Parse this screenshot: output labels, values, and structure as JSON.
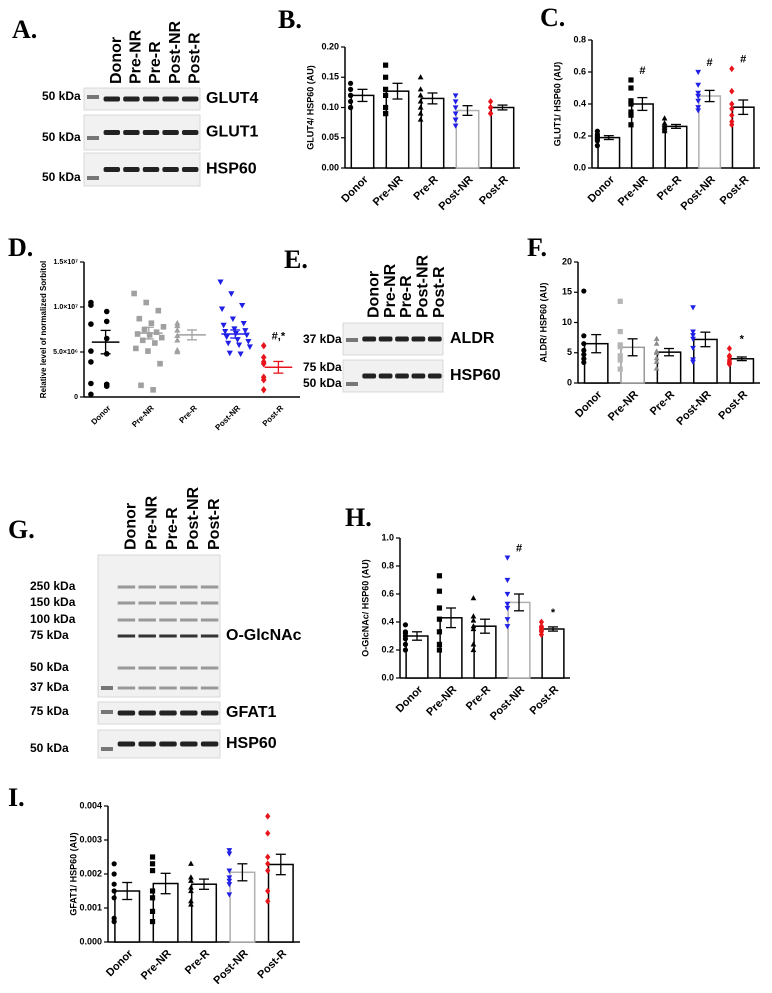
{
  "blots": [
    {
      "letter": "A.",
      "lanes": [
        "Donor",
        "Pre-NR",
        "Pre-R",
        "Post-NR",
        "Post-R"
      ],
      "rows": [
        {
          "label": "GLUT4",
          "markers": [
            "50 kDa"
          ]
        },
        {
          "label": "GLUT1",
          "markers": [
            "50 kDa"
          ]
        },
        {
          "label": "HSP60",
          "markers": [
            "50 kDa"
          ]
        }
      ]
    },
    {
      "letter": "E.",
      "lanes": [
        "Donor",
        "Pre-NR",
        "Pre-R",
        "Post-NR",
        "Post-R"
      ],
      "rows": [
        {
          "label": "ALDR",
          "markers": [
            "37 kDa"
          ]
        },
        {
          "label": "HSP60",
          "markers": [
            "75 kDa",
            "50 kDa"
          ]
        }
      ]
    },
    {
      "letter": "G.",
      "lanes": [
        "Donor",
        "Pre-NR",
        "Pre-R",
        "Post-NR",
        "Post-R"
      ],
      "rows": [
        {
          "label": "O-GlcNAc",
          "markers": [
            "250 kDa",
            "150 kDa",
            "100 kDa",
            "75 kDa",
            "50 kDa",
            "37 kDa"
          ]
        },
        {
          "label": "GFAT1",
          "markers": [
            "75 kDa"
          ]
        },
        {
          "label": "HSP60",
          "markers": [
            "50 kDa"
          ]
        }
      ]
    }
  ],
  "chart_data": [
    {
      "type": "bar",
      "letter": "B.",
      "ylabel": "GLUT4/ HSP60 (AU)",
      "categories": [
        "Donor",
        "Pre-NR",
        "Pre-R",
        "Post-NR",
        "Post-R"
      ],
      "values": [
        0.12,
        0.127,
        0.115,
        0.095,
        0.1
      ],
      "errors": [
        0.01,
        0.013,
        0.009,
        0.008,
        0.004
      ],
      "points": [
        [
          0.14,
          0.13,
          0.12,
          0.12,
          0.11,
          0.1,
          0.1
        ],
        [
          0.17,
          0.15,
          0.13,
          0.12,
          0.1,
          0.09,
          0.09
        ],
        [
          0.15,
          0.13,
          0.12,
          0.11,
          0.1,
          0.09,
          0.08
        ],
        [
          0.12,
          0.11,
          0.1,
          0.09,
          0.08,
          0.08,
          0.07
        ],
        [
          0.11,
          0.1,
          0.1,
          0.1,
          0.09,
          0.09,
          0.09
        ]
      ],
      "colors": [
        "#000000",
        "#000000",
        "#000000",
        "#1f1fe6",
        "#e8141b"
      ],
      "bar_edges": [
        "#000000",
        "#000000",
        "#000000",
        "#b0b0b0",
        "#000000"
      ],
      "markers": [
        "circle",
        "square",
        "triangle",
        "triangle-down",
        "diamond"
      ],
      "annotations": [
        null,
        null,
        null,
        null,
        null
      ],
      "ylim": [
        0,
        0.2
      ],
      "yticks": [
        {
          "value": 0,
          "label": "0.00"
        },
        {
          "value": 0.05,
          "label": "0.05"
        },
        {
          "value": 0.1,
          "label": "0.10"
        },
        {
          "value": 0.15,
          "label": "0.15"
        },
        {
          "value": 0.2,
          "label": "0.20"
        }
      ]
    },
    {
      "type": "bar",
      "letter": "C.",
      "ylabel": "GLUT1/ HSP60 (AU)",
      "categories": [
        "Donor",
        "Pre-NR",
        "Pre-R",
        "Post-NR",
        "Post-R"
      ],
      "values": [
        0.19,
        0.4,
        0.26,
        0.45,
        0.38
      ],
      "errors": [
        0.012,
        0.04,
        0.012,
        0.035,
        0.045
      ],
      "points": [
        [
          0.23,
          0.21,
          0.2,
          0.19,
          0.18,
          0.17,
          0.14
        ],
        [
          0.55,
          0.5,
          0.42,
          0.4,
          0.35,
          0.33,
          0.27
        ],
        [
          0.31,
          0.28,
          0.27,
          0.26,
          0.25,
          0.24,
          0.23
        ],
        [
          0.6,
          0.52,
          0.47,
          0.45,
          0.42,
          0.38,
          0.36
        ],
        [
          0.62,
          0.48,
          0.4,
          0.37,
          0.33,
          0.29,
          0.27
        ]
      ],
      "colors": [
        "#000000",
        "#000000",
        "#000000",
        "#1f1fe6",
        "#e8141b"
      ],
      "bar_edges": [
        "#000000",
        "#000000",
        "#000000",
        "#b0b0b0",
        "#000000"
      ],
      "markers": [
        "circle",
        "square",
        "triangle",
        "triangle-down",
        "diamond"
      ],
      "annotations": [
        null,
        "#",
        null,
        "#",
        "#"
      ],
      "ylim": [
        0,
        0.8
      ],
      "yticks": [
        {
          "value": 0,
          "label": "0.0"
        },
        {
          "value": 0.2,
          "label": "0.2"
        },
        {
          "value": 0.4,
          "label": "0.4"
        },
        {
          "value": 0.6,
          "label": "0.6"
        },
        {
          "value": 0.8,
          "label": "0.8"
        }
      ]
    },
    {
      "type": "dot",
      "letter": "D.",
      "ylabel": "Relative level of normalized Sorbitol",
      "categories": [
        "Donor",
        "Pre-NR",
        "Pre-R",
        "Post-NR",
        "Post-R"
      ],
      "values": [
        6100000,
        7100000,
        6900000,
        7000000,
        3300000
      ],
      "errors": [
        1300000,
        650000,
        550000,
        450000,
        650000
      ],
      "points": [
        [
          10200000,
          9500000,
          10500000,
          8400000,
          8100000,
          6500000,
          5100000,
          4800000,
          3900000,
          1200000,
          1500000,
          1400000,
          300000,
          1400000
        ],
        [
          11500000,
          10500000,
          9600000,
          8700000,
          8200000,
          7800000,
          7500000,
          7200000,
          7000000,
          6900000,
          6600000,
          6300000,
          6000000,
          5400000,
          5100000,
          3700000,
          1300000,
          800000
        ],
        [
          8200000,
          7900000,
          7400000,
          6800000,
          6300000,
          5200000,
          5000000
        ],
        [
          12800000,
          11500000,
          10200000,
          9800000,
          8700000,
          8200000,
          8000000,
          7600000,
          7400000,
          7300000,
          7100000,
          6900000,
          6700000,
          6400000,
          6200000,
          6000000,
          5800000,
          5600000,
          4900000,
          4800000
        ],
        [
          5700000,
          4400000,
          3900000,
          3700000,
          2200000,
          1900000,
          800000
        ]
      ],
      "colors": [
        "#000000",
        "#a0a0a0",
        "#a0a0a0",
        "#1f1fe6",
        "#e8141b"
      ],
      "markers": [
        "circle",
        "square",
        "triangle",
        "triangle-down",
        "diamond"
      ],
      "annotations": [
        null,
        null,
        null,
        null,
        "#,*"
      ],
      "ylim": [
        0,
        15000000
      ],
      "yticks": [
        0,
        {
          "value": 5000000,
          "label": "5.0×10⁶"
        },
        {
          "value": 10000000,
          "label": "1.0×10⁷"
        },
        {
          "value": 15000000,
          "label": "1.5×10⁷"
        }
      ]
    },
    {
      "type": "bar",
      "letter": "F.",
      "ylabel": "ALDR/ HSP60 (AU)",
      "categories": [
        "Donor",
        "Pre-NR",
        "Pre-R",
        "Post-NR",
        "Post-R"
      ],
      "values": [
        6.5,
        5.9,
        5.1,
        7.2,
        4.0
      ],
      "errors": [
        1.5,
        1.4,
        0.6,
        1.2,
        0.3
      ],
      "points": [
        [
          15.2,
          7.8,
          6.5,
          5.4,
          4.7,
          4.0,
          3.4
        ],
        [
          13.5,
          8.5,
          6.3,
          6.0,
          4.5,
          3.8,
          2.3
        ],
        [
          7.3,
          6.5,
          5.2,
          5.0,
          4.1,
          3.5,
          2.4
        ],
        [
          12.5,
          8.5,
          7.9,
          7.3,
          5.8,
          3.9,
          3.5
        ],
        [
          5.7,
          4.5,
          4.3,
          3.8,
          3.5,
          3.3,
          3.1
        ]
      ],
      "colors": [
        "#000000",
        "#b5b5b5",
        "#8a8a8a",
        "#1f1fe6",
        "#e8141b"
      ],
      "bar_edges": [
        "#000000",
        "#9a9a9a",
        "#000000",
        "#000000",
        "#000000"
      ],
      "markers": [
        "circle",
        "square",
        "triangle",
        "triangle-down",
        "diamond"
      ],
      "annotations": [
        null,
        null,
        null,
        null,
        "*"
      ],
      "ylim": [
        0,
        20
      ],
      "yticks": [
        0,
        5,
        10,
        15,
        20
      ]
    },
    {
      "type": "bar",
      "letter": "H.",
      "ylabel": "O-GlcNAc/ HSP60 (AU)",
      "categories": [
        "Donor",
        "Pre-NR",
        "Pre-R",
        "Post-NR",
        "Post-R"
      ],
      "values": [
        0.3,
        0.43,
        0.37,
        0.54,
        0.35
      ],
      "errors": [
        0.03,
        0.07,
        0.05,
        0.06,
        0.015
      ],
      "points": [
        [
          0.38,
          0.33,
          0.32,
          0.3,
          0.28,
          0.24,
          0.2
        ],
        [
          0.73,
          0.62,
          0.5,
          0.42,
          0.33,
          0.24,
          0.2
        ],
        [
          0.57,
          0.44,
          0.41,
          0.37,
          0.35,
          0.24,
          0.2
        ],
        [
          0.86,
          0.7,
          0.6,
          0.53,
          0.5,
          0.42,
          0.37
        ],
        [
          0.4,
          0.37,
          0.36,
          0.35,
          0.34,
          0.33,
          0.31
        ]
      ],
      "colors": [
        "#000000",
        "#000000",
        "#000000",
        "#1f1fe6",
        "#e8141b"
      ],
      "bar_edges": [
        "#000000",
        "#000000",
        "#000000",
        "#b0b0b0",
        "#000000"
      ],
      "markers": [
        "circle",
        "square",
        "triangle",
        "triangle-down",
        "diamond"
      ],
      "annotations": [
        null,
        null,
        null,
        "#",
        "*"
      ],
      "ylim": [
        0,
        1.0
      ],
      "yticks": [
        {
          "value": 0,
          "label": "0.0"
        },
        {
          "value": 0.2,
          "label": "0.2"
        },
        {
          "value": 0.4,
          "label": "0.4"
        },
        {
          "value": 0.6,
          "label": "0.6"
        },
        {
          "value": 0.8,
          "label": "0.8"
        },
        {
          "value": 1.0,
          "label": "1.0"
        }
      ]
    },
    {
      "type": "bar",
      "letter": "I.",
      "ylabel": "GFAT1/ HSP60 (AU)",
      "categories": [
        "Donor",
        "Pre-NR",
        "Pre-R",
        "Post-NR",
        "Post-R"
      ],
      "values": [
        0.0015,
        0.00172,
        0.0017,
        0.00205,
        0.00228
      ],
      "errors": [
        0.00025,
        0.0003,
        0.00015,
        0.00025,
        0.0003
      ],
      "points": [
        [
          0.0023,
          0.002,
          0.0017,
          0.0015,
          0.0013,
          0.0007,
          0.0006
        ],
        [
          0.0025,
          0.0023,
          0.0021,
          0.0015,
          0.0013,
          0.0009,
          0.0006
        ],
        [
          0.0023,
          0.0019,
          0.0018,
          0.0016,
          0.0015,
          0.0012,
          0.0011
        ],
        [
          0.0027,
          0.0026,
          0.0021,
          0.0019,
          0.0018,
          0.0017,
          0.0014
        ],
        [
          0.0037,
          0.0032,
          0.0025,
          0.0023,
          0.0021,
          0.0015,
          0.0012
        ]
      ],
      "colors": [
        "#000000",
        "#000000",
        "#000000",
        "#1f1fe6",
        "#e8141b"
      ],
      "bar_edges": [
        "#000000",
        "#000000",
        "#000000",
        "#b0b0b0",
        "#000000"
      ],
      "markers": [
        "circle",
        "square",
        "triangle",
        "triangle-down",
        "diamond"
      ],
      "annotations": [
        null,
        null,
        null,
        null,
        null
      ],
      "ylim": [
        0,
        0.004
      ],
      "yticks": [
        {
          "value": 0,
          "label": "0.000"
        },
        {
          "value": 0.001,
          "label": "0.001"
        },
        {
          "value": 0.002,
          "label": "0.002"
        },
        {
          "value": 0.003,
          "label": "0.003"
        },
        {
          "value": 0.004,
          "label": "0.004"
        }
      ]
    }
  ]
}
